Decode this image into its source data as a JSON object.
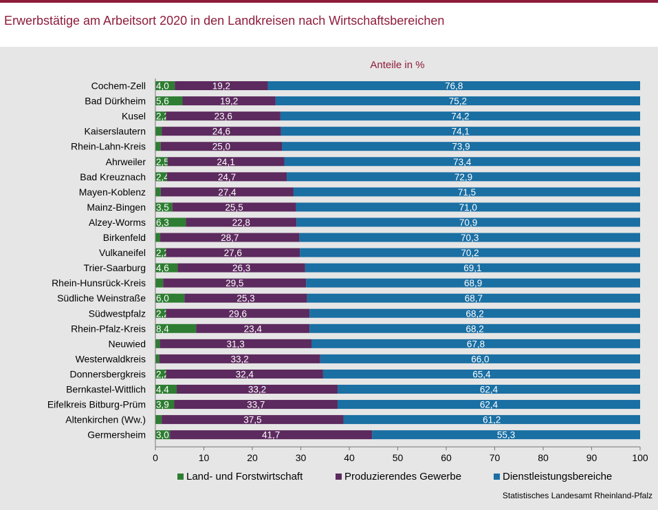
{
  "header": {
    "title": "Erwerbstätige am Arbeitsort 2020 in den Landkreisen nach Wirtschaftsbereichen"
  },
  "colors": {
    "accent": "#8e1c3a",
    "panel": "#e6e6e6",
    "land": "#2e7d32",
    "produzierend": "#5c2a5e",
    "dienst": "#1a6fa3"
  },
  "chart_data": {
    "type": "bar",
    "orientation": "horizontal",
    "stacked": true,
    "unit_label": "Anteile in %",
    "xlim": [
      0,
      100
    ],
    "xticks": [
      "0",
      "10",
      "20",
      "30",
      "40",
      "50",
      "60",
      "70",
      "80",
      "90",
      "100"
    ],
    "categories": [
      "Cochem-Zell",
      "Bad Dürkheim",
      "Kusel",
      "Kaiserslautern",
      "Rhein-Lahn-Kreis",
      "Ahrweiler",
      "Bad Kreuznach",
      "Mayen-Koblenz",
      "Mainz-Bingen",
      "Alzey-Worms",
      "Birkenfeld",
      "Vulkaneifel",
      "Trier-Saarburg",
      "Rhein-Hunsrück-Kreis",
      "Südliche Weinstraße",
      "Südwestpfalz",
      "Rhein-Pfalz-Kreis",
      "Neuwied",
      "Westerwaldkreis",
      "Donnersbergkreis",
      "Bernkastel-Wittlich",
      "Eifelkreis Bitburg-Prüm",
      "Altenkirchen (Ww.)",
      "Germersheim"
    ],
    "series": [
      {
        "name": "Land- und Forstwirtschaft",
        "values": [
          4.0,
          5.6,
          2.2,
          1.3,
          1.1,
          2.5,
          2.4,
          1.1,
          3.5,
          6.3,
          1.0,
          2.2,
          4.6,
          1.6,
          6.0,
          2.2,
          8.4,
          0.9,
          0.8,
          2.2,
          4.4,
          3.9,
          1.3,
          3.0
        ],
        "labels": [
          "4,0",
          "5,6",
          "2,2",
          "",
          "",
          "2,5",
          "2,4",
          "",
          "3,5",
          "6,3",
          "",
          "2,2",
          "4,6",
          "",
          "6,0",
          "2,2",
          "8,4",
          "",
          "",
          "2,2",
          "4,4",
          "3,9",
          "",
          "3,0"
        ]
      },
      {
        "name": "Produzierendes Gewerbe",
        "values": [
          19.2,
          19.2,
          23.6,
          24.6,
          25.0,
          24.1,
          24.7,
          27.4,
          25.5,
          22.8,
          28.7,
          27.6,
          26.3,
          29.5,
          25.3,
          29.6,
          23.4,
          31.3,
          33.2,
          32.4,
          33.2,
          33.7,
          37.5,
          41.7
        ],
        "labels": [
          "19,2",
          "19,2",
          "23,6",
          "24,6",
          "25,0",
          "24,1",
          "24,7",
          "27,4",
          "25,5",
          "22,8",
          "28,7",
          "27,6",
          "26,3",
          "29,5",
          "25,3",
          "29,6",
          "23,4",
          "31,3",
          "33,2",
          "32,4",
          "33,2",
          "33,7",
          "37,5",
          "41,7"
        ]
      },
      {
        "name": "Dienstleistungsbereiche",
        "values": [
          76.8,
          75.2,
          74.2,
          74.1,
          73.9,
          73.4,
          72.9,
          71.5,
          71.0,
          70.9,
          70.3,
          70.2,
          69.1,
          68.9,
          68.7,
          68.2,
          68.2,
          67.8,
          66.0,
          65.4,
          62.4,
          62.4,
          61.2,
          55.3
        ],
        "labels": [
          "76,8",
          "75,2",
          "74,2",
          "74,1",
          "73,9",
          "73,4",
          "72,9",
          "71,5",
          "71,0",
          "70,9",
          "70,3",
          "70,2",
          "69,1",
          "68,9",
          "68,7",
          "68,2",
          "68,2",
          "67,8",
          "66,0",
          "65,4",
          "62,4",
          "62,4",
          "61,2",
          "55,3"
        ]
      }
    ],
    "legend_position": "bottom",
    "grid": false
  },
  "footer": {
    "source": "Statistisches Landesamt Rheinland-Pfalz"
  }
}
